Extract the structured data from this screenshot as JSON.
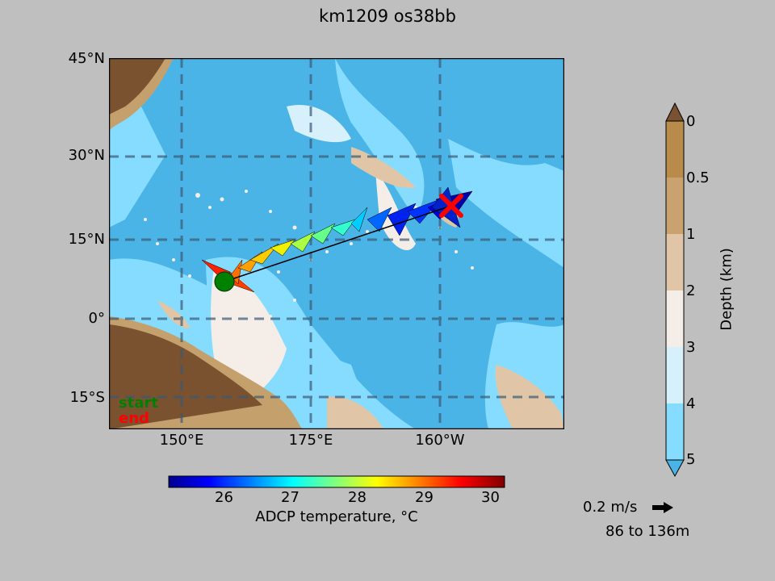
{
  "title": "km1209 os38bb",
  "map": {
    "lat_ticks": [
      "45°N",
      "30°N",
      "15°N",
      "0°",
      "15°S"
    ],
    "lon_ticks": [
      "150°E",
      "175°E",
      "160°W"
    ],
    "start_label": "start",
    "end_label": "end",
    "colors": {
      "deep": "#4ab4e6",
      "mid": "#86dcff",
      "shallow": "#d6f1fc",
      "shelf": "#f5ede8",
      "land_lo": "#e0c6a6",
      "land_mid": "#c4a06c",
      "land_hi": "#7a5230"
    }
  },
  "depth_colorbar": {
    "label": "Depth (km)",
    "ticks": [
      "0",
      "0.5",
      "1",
      "2",
      "3",
      "4",
      "5"
    ]
  },
  "temp_colorbar": {
    "label": "ADCP temperature, °C",
    "ticks": [
      "26",
      "27",
      "28",
      "29",
      "30"
    ]
  },
  "scale": {
    "speed_label": "0.2 m/s",
    "range_label": "86 to 136m"
  }
}
